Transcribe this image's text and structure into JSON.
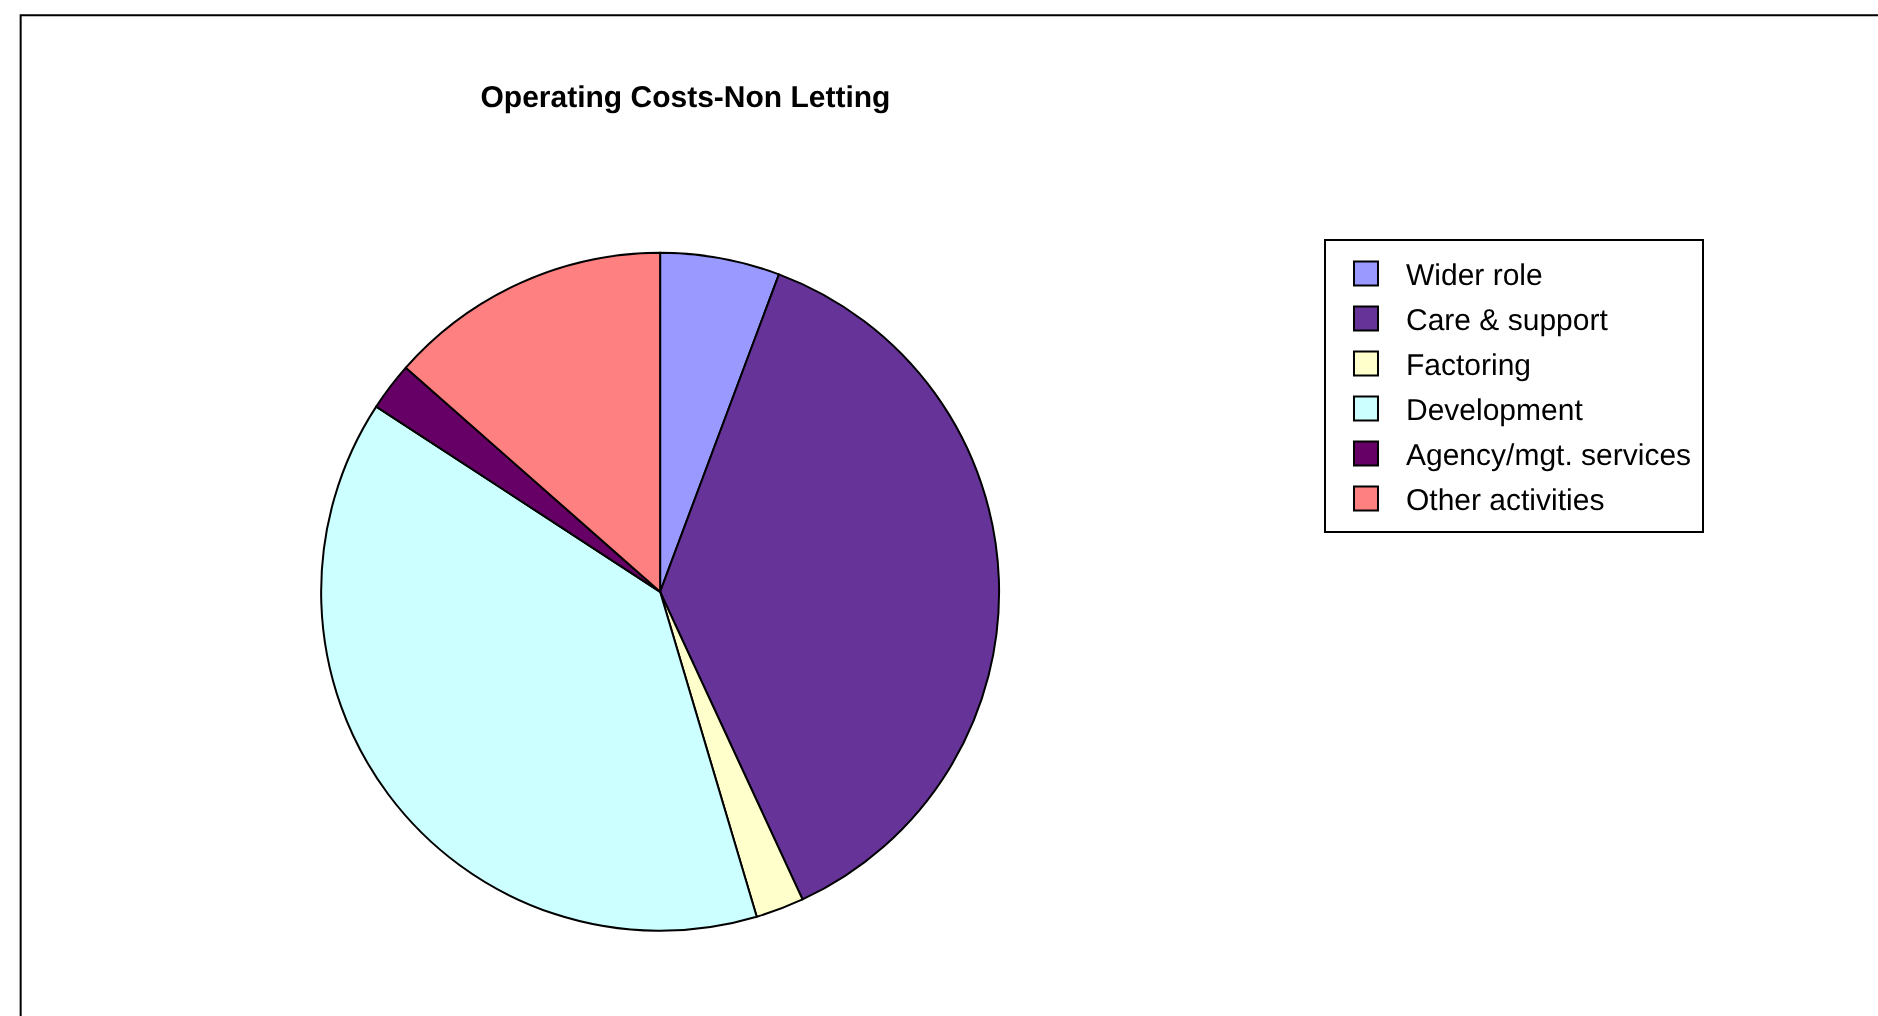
{
  "chart_data": {
    "type": "pie",
    "title": "Operating Costs-Non Letting",
    "categories": [
      "Wider role",
      "Care & support",
      "Factoring",
      "Development",
      "Agency/mgt. services",
      "Other activities"
    ],
    "values": [
      5.7,
      37.4,
      2.3,
      38.8,
      2.3,
      13.5
    ],
    "colors": [
      "#9999ff",
      "#663399",
      "#ffffcc",
      "#ccffff",
      "#660066",
      "#ff8080"
    ],
    "legend": "right"
  }
}
